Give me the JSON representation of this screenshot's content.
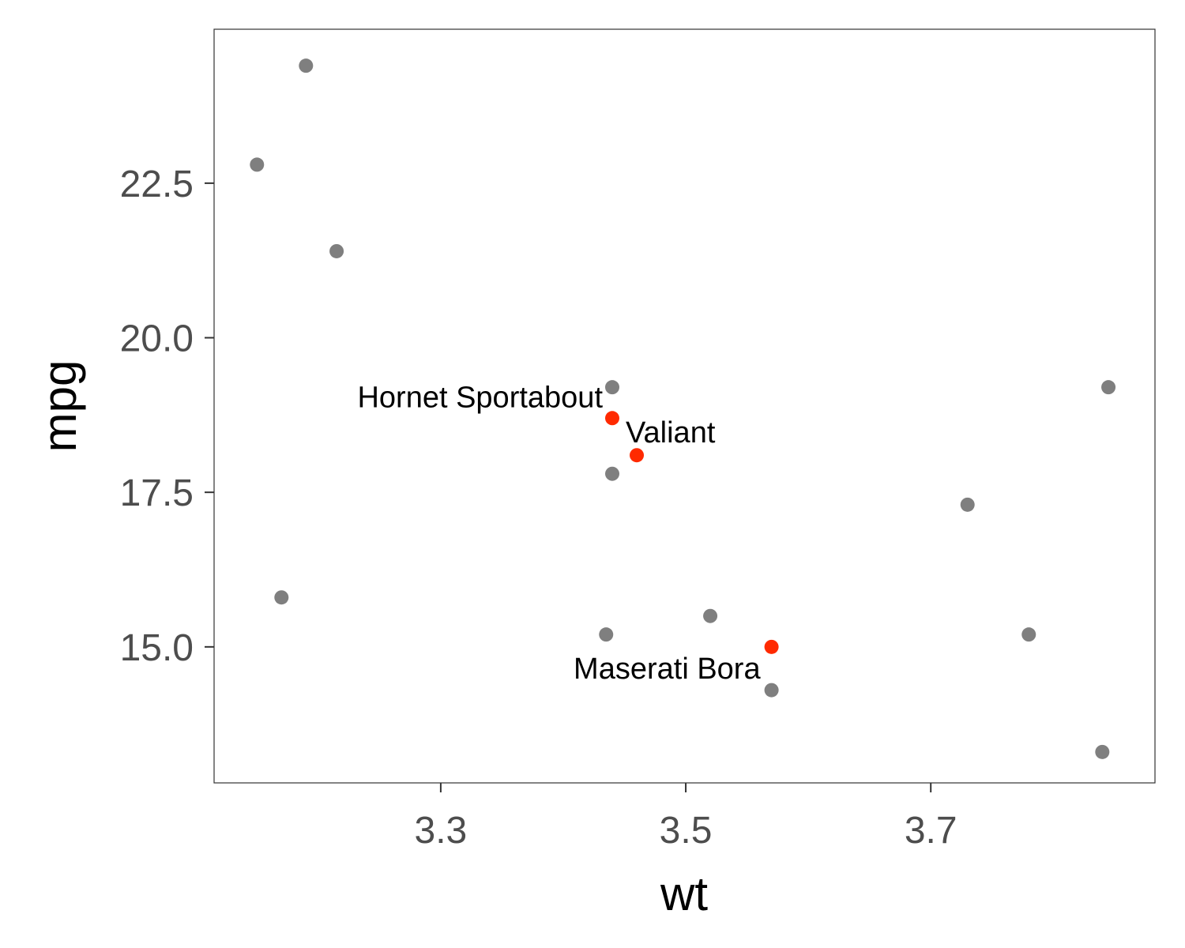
{
  "chart_data": {
    "type": "scatter",
    "xlabel": "wt",
    "ylabel": "mpg",
    "xlim": [
      3.115,
      3.883
    ],
    "ylim": [
      12.8,
      24.99
    ],
    "xticks": [
      3.3,
      3.5,
      3.7
    ],
    "xtick_labels": [
      "3.3",
      "3.5",
      "3.7"
    ],
    "yticks": [
      15.0,
      17.5,
      20.0,
      22.5
    ],
    "ytick_labels": [
      "15.0",
      "17.5",
      "20.0",
      "22.5"
    ],
    "grid": false,
    "colors": {
      "default": "#7f7f7f",
      "highlight": "#ff2a00"
    },
    "points": [
      {
        "x": 3.19,
        "y": 24.4,
        "highlight": false
      },
      {
        "x": 3.15,
        "y": 22.8,
        "highlight": false
      },
      {
        "x": 3.215,
        "y": 21.4,
        "highlight": false
      },
      {
        "x": 3.44,
        "y": 19.2,
        "highlight": false
      },
      {
        "x": 3.845,
        "y": 19.2,
        "highlight": false
      },
      {
        "x": 3.44,
        "y": 18.7,
        "highlight": true,
        "label": "Hornet Sportabout",
        "label_pos": "left"
      },
      {
        "x": 3.46,
        "y": 18.1,
        "highlight": true,
        "label": "Valiant",
        "label_pos": "above-right"
      },
      {
        "x": 3.44,
        "y": 17.8,
        "highlight": false
      },
      {
        "x": 3.73,
        "y": 17.3,
        "highlight": false
      },
      {
        "x": 3.17,
        "y": 15.8,
        "highlight": false
      },
      {
        "x": 3.52,
        "y": 15.5,
        "highlight": false
      },
      {
        "x": 3.435,
        "y": 15.2,
        "highlight": false
      },
      {
        "x": 3.78,
        "y": 15.2,
        "highlight": false
      },
      {
        "x": 3.57,
        "y": 15.0,
        "highlight": true,
        "label": "Maserati Bora",
        "label_pos": "below-left"
      },
      {
        "x": 3.57,
        "y": 14.3,
        "highlight": false
      },
      {
        "x": 3.84,
        "y": 13.3,
        "highlight": false
      }
    ]
  }
}
